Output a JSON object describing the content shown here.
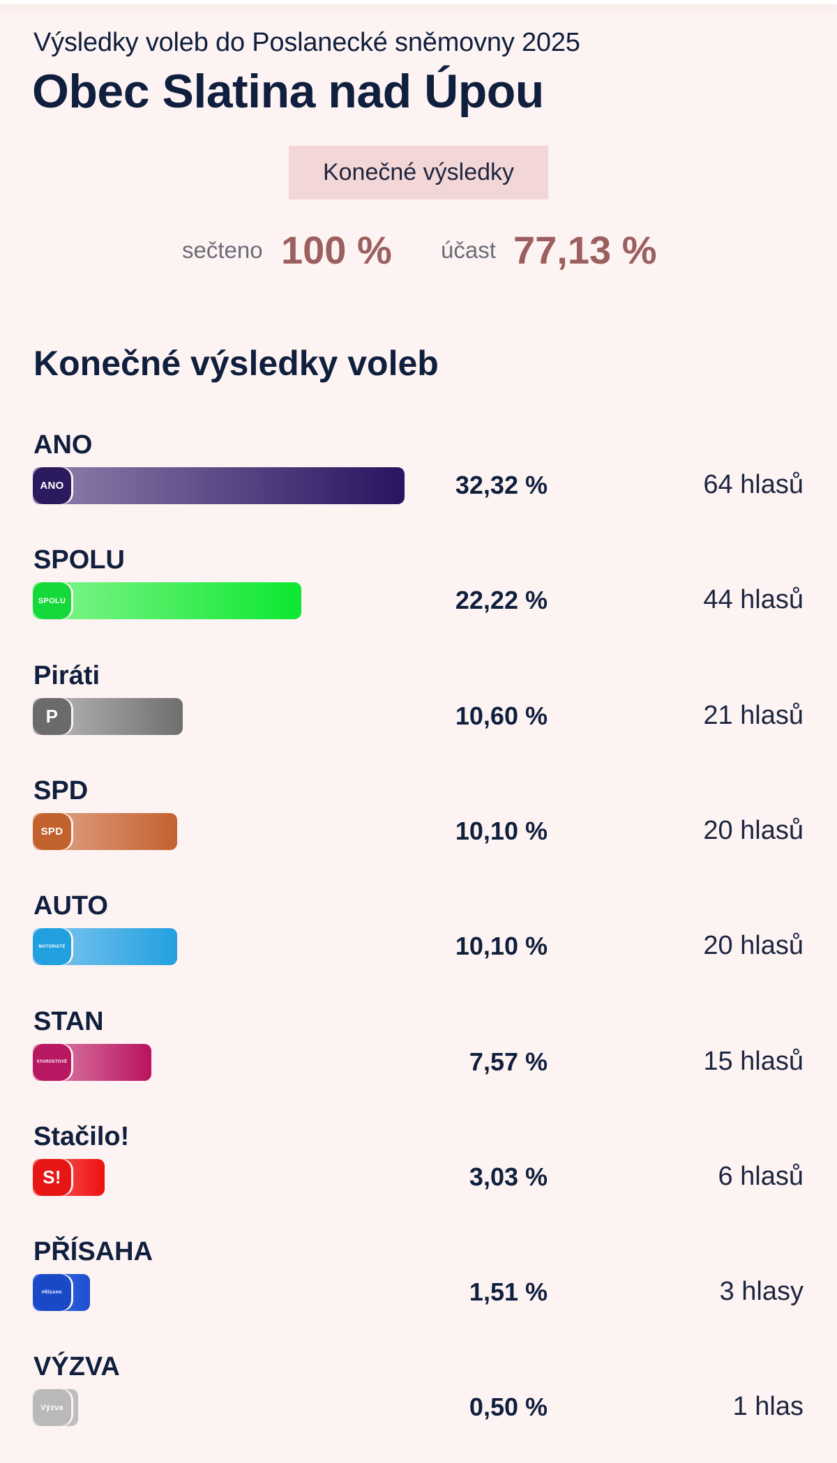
{
  "header": {
    "subtitle": "Výsledky voleb do Poslanecké sněmovny 2025",
    "title": "Obec Slatina nad Úpou",
    "status_badge": "Konečné výsledky"
  },
  "stats": {
    "counted_label": "sečteno",
    "counted_value": "100 %",
    "turnout_label": "účast",
    "turnout_value": "77,13 %"
  },
  "section_title": "Konečné výsledky voleb",
  "parties": [
    {
      "name": "ANO",
      "logo_text": "ANO",
      "percent": "32,32 %",
      "votes": "64 hlasů",
      "color_from": "#8f82ad",
      "color_to": "#2a1360",
      "logo_color": "#2c1a5e"
    },
    {
      "name": "SPOLU",
      "logo_text": "SPOLU",
      "percent": "22,22 %",
      "votes": "44 hlasů",
      "color_from": "#86f58f",
      "color_to": "#0ce830",
      "logo_color": "#15d83a"
    },
    {
      "name": "Piráti",
      "logo_text": "P",
      "percent": "10,60 %",
      "votes": "21 hlasů",
      "color_from": "#bdbdbd",
      "color_to": "#6f6f6f",
      "logo_color": "#6b6b6b"
    },
    {
      "name": "SPD",
      "logo_text": "SPD",
      "percent": "10,10 %",
      "votes": "20 hlasů",
      "color_from": "#e2a98d",
      "color_to": "#c4612f",
      "logo_color": "#c2622f"
    },
    {
      "name": "AUTO",
      "logo_text": "MOTORISTÉ",
      "percent": "10,10 %",
      "votes": "20 hlasů",
      "color_from": "#86c8ef",
      "color_to": "#22a0e0",
      "logo_color": "#21a0df"
    },
    {
      "name": "STAN",
      "logo_text": "STAROSTOVÉ",
      "percent": "7,57 %",
      "votes": "15 hlasů",
      "color_from": "#e08cb2",
      "color_to": "#b8135f",
      "logo_color": "#b81761"
    },
    {
      "name": "Stačilo!",
      "logo_text": "S!",
      "percent": "3,03 %",
      "votes": "6 hlasů",
      "color_from": "#f86a6a",
      "color_to": "#ee1010",
      "logo_color": "#e81515"
    },
    {
      "name": "PŘÍSAHA",
      "logo_text": "PŘÍSAHA",
      "percent": "1,51 %",
      "votes": "3 hlasy",
      "color_from": "#3f74e8",
      "color_to": "#1d4fd0",
      "logo_color": "#1a49c8"
    },
    {
      "name": "VÝZVA",
      "logo_text": "Výzva",
      "percent": "0,50 %",
      "votes": "1 hlas",
      "color_from": "#d0d0d0",
      "color_to": "#bcbcbc",
      "logo_color": "#b9b9b9"
    }
  ],
  "chart_data": {
    "type": "bar",
    "title": "Konečné výsledky voleb",
    "orientation": "horizontal",
    "categories": [
      "ANO",
      "SPOLU",
      "Piráti",
      "SPD",
      "AUTO",
      "STAN",
      "Stačilo!",
      "PŘÍSAHA",
      "VÝZVA"
    ],
    "values": [
      32.32,
      22.22,
      10.6,
      10.1,
      10.1,
      7.57,
      3.03,
      1.51,
      0.5
    ],
    "votes": [
      64,
      44,
      21,
      20,
      20,
      15,
      6,
      3,
      1
    ],
    "unit": "%",
    "xlabel": "",
    "ylabel": ""
  }
}
